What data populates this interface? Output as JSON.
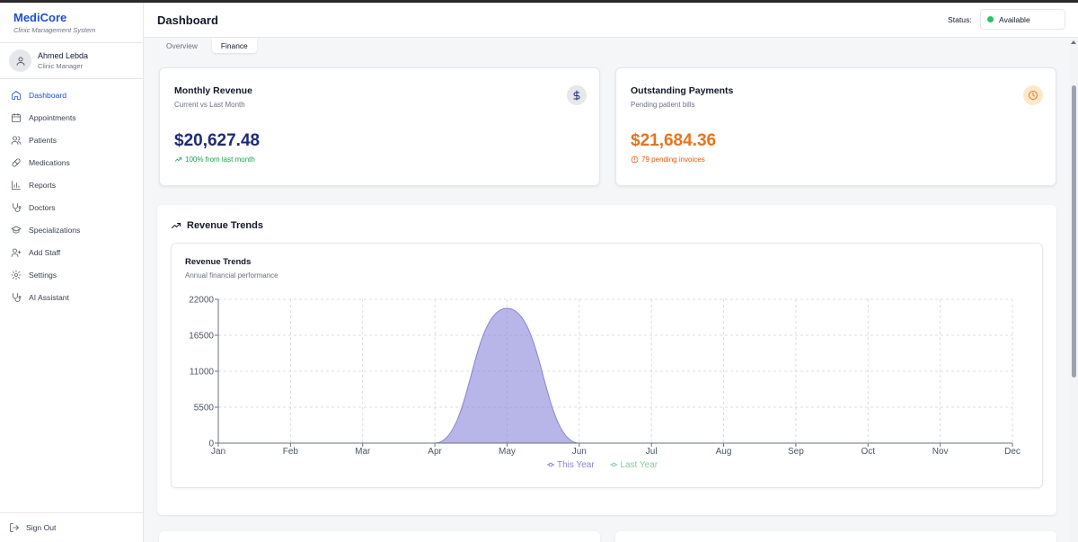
{
  "app": {
    "name": "MediCore",
    "subtitle": "Clinic Management System"
  },
  "user": {
    "name": "Ahmed Lebda",
    "role": "Clinic Manager",
    "icon": "user-icon"
  },
  "sidebar": {
    "items": [
      {
        "label": "Dashboard",
        "icon": "home-icon",
        "active": true
      },
      {
        "label": "Appointments",
        "icon": "calendar-icon",
        "active": false
      },
      {
        "label": "Patients",
        "icon": "users-icon",
        "active": false
      },
      {
        "label": "Medications",
        "icon": "pill-icon",
        "active": false
      },
      {
        "label": "Reports",
        "icon": "bar-chart-icon",
        "active": false
      },
      {
        "label": "Doctors",
        "icon": "stethoscope-icon",
        "active": false
      },
      {
        "label": "Specializations",
        "icon": "graduation-cap-icon",
        "active": false
      },
      {
        "label": "Add Staff",
        "icon": "user-plus-icon",
        "active": false
      },
      {
        "label": "Settings",
        "icon": "gear-icon",
        "active": false
      },
      {
        "label": "AI Assistant",
        "icon": "stethoscope-icon",
        "active": false
      }
    ],
    "signout": "Sign Out"
  },
  "header": {
    "title": "Dashboard",
    "status_label": "Status:",
    "status_value": "Available",
    "status_color": "#22c55e"
  },
  "tabs": [
    {
      "label": "Overview",
      "active": false
    },
    {
      "label": "Finance",
      "active": true
    }
  ],
  "cards": {
    "revenue": {
      "title": "Monthly Revenue",
      "subtitle": "Current vs Last Month",
      "value": "$20,627.48",
      "note": "100% from last month",
      "value_color": "#1e2a78",
      "note_color": "#16a34a",
      "icon": "dollar-icon"
    },
    "outstanding": {
      "title": "Outstanding Payments",
      "subtitle": "Pending patient bills",
      "value": "$21,684.36",
      "note": "79 pending invoices",
      "value_color": "#ea7317",
      "note_color": "#ea580c",
      "icon": "clock-icon"
    }
  },
  "revenue_section": {
    "title": "Revenue Trends",
    "icon": "trending-up-icon"
  },
  "chart_data": {
    "type": "area",
    "title": "Revenue Trends",
    "subtitle": "Annual financial performance",
    "categories": [
      "Jan",
      "Feb",
      "Mar",
      "Apr",
      "May",
      "Jun",
      "Jul",
      "Aug",
      "Sep",
      "Oct",
      "Nov",
      "Dec"
    ],
    "series": [
      {
        "name": "This Year",
        "values": [
          0,
          0,
          0,
          0,
          20627.48,
          0,
          0,
          0,
          0,
          0,
          0,
          0
        ],
        "color": "#8884d8"
      },
      {
        "name": "Last Year",
        "values": [
          0,
          0,
          0,
          0,
          0,
          0,
          0,
          0,
          0,
          0,
          0,
          0
        ],
        "color": "#82ca9d"
      }
    ],
    "yticks": [
      "0",
      "5500",
      "11000",
      "16500",
      "22000"
    ],
    "ylim": [
      0,
      22000
    ],
    "grid": true,
    "legend": "bottom-center"
  }
}
